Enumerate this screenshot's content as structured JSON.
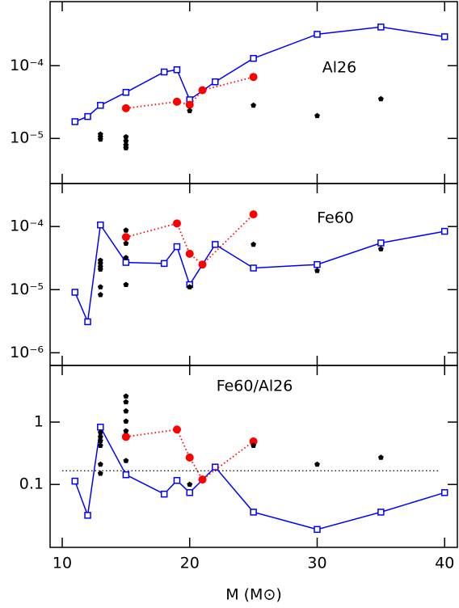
{
  "chart_data": [
    {
      "type": "line",
      "label": "Al26",
      "ylog": true,
      "xlim": [
        9.05,
        41.0
      ],
      "xticks": [
        10,
        20,
        30,
        40
      ],
      "ylim": [
        2.4e-06,
        0.00076
      ],
      "yticks": [
        {
          "value": 0.0001,
          "label": "10⁻⁴"
        },
        {
          "value": 1e-05,
          "label": "10⁻⁵"
        }
      ],
      "series": [
        {
          "color": "#0000ff",
          "style": "solid",
          "marker": "square",
          "x": [
            11,
            12,
            13,
            15,
            18,
            19,
            20,
            22,
            25,
            30,
            35,
            40
          ],
          "values": [
            1.7e-05,
            2e-05,
            2.85e-05,
            4.3e-05,
            8.2e-05,
            8.8e-05,
            3.4e-05,
            6e-05,
            0.000126,
            0.00027,
            0.00034,
            0.00025
          ]
        },
        {
          "color": "#ff0000",
          "style": "dotted",
          "marker": "circle",
          "x": [
            15,
            19,
            20,
            21,
            25
          ],
          "values": [
            2.6e-05,
            3.2e-05,
            2.9e-05,
            4.6e-05,
            7e-05
          ]
        },
        {
          "color": "#000000",
          "style": "none",
          "marker": "pentagon",
          "x": [
            13,
            13,
            13,
            15,
            15,
            15,
            15,
            20,
            25,
            30,
            35
          ],
          "values": [
            1.14e-05,
            1.05e-05,
            9.7e-06,
            1.05e-05,
            9.2e-06,
            8.1e-06,
            7.4e-06,
            2.4e-05,
            2.85e-05,
            2.05e-05,
            3.5e-05
          ]
        }
      ]
    },
    {
      "type": "line",
      "label": "Fe60",
      "ylog": true,
      "xlim": [
        9.05,
        41.0
      ],
      "xticks": [
        10,
        20,
        30,
        40
      ],
      "ylim": [
        6.3e-07,
        0.00048
      ],
      "yticks": [
        {
          "value": 0.0001,
          "label": "10⁻⁴"
        },
        {
          "value": 1e-05,
          "label": "10⁻⁵"
        },
        {
          "value": 1e-06,
          "label": "10⁻⁶"
        }
      ],
      "series": [
        {
          "color": "#0000ff",
          "style": "solid",
          "marker": "square",
          "x": [
            11,
            12,
            13,
            15,
            18,
            19,
            20,
            22,
            25,
            30,
            35,
            40
          ],
          "values": [
            9.1e-06,
            3.1e-06,
            0.000106,
            2.7e-05,
            2.6e-05,
            4.8e-05,
            1.2e-05,
            5.2e-05,
            2.2e-05,
            2.5e-05,
            5.5e-05,
            8.4e-05
          ]
        },
        {
          "color": "#ff0000",
          "style": "dotted",
          "marker": "circle",
          "x": [
            15,
            19,
            20,
            21,
            25
          ],
          "values": [
            6.8e-05,
            0.000112,
            3.7e-05,
            2.5e-05,
            0.000156
          ]
        },
        {
          "color": "#000000",
          "style": "none",
          "marker": "pentagon",
          "x": [
            13,
            13,
            13,
            13,
            13,
            13,
            15,
            15,
            15,
            15,
            20,
            25,
            30,
            35
          ],
          "values": [
            2.9e-05,
            2.6e-05,
            2.3e-05,
            2.1e-05,
            1.1e-05,
            8.3e-06,
            8.7e-05,
            5.4e-05,
            3.2e-05,
            1.2e-05,
            1.1e-05,
            5.2e-05,
            2e-05,
            4.4e-05
          ]
        }
      ]
    },
    {
      "type": "line",
      "label": "Fe60/Al26",
      "ylog": true,
      "xlim": [
        9.05,
        41.0
      ],
      "xticks": [
        10,
        20,
        30,
        40
      ],
      "xlabel": "M (M⊙)",
      "ylim": [
        0.0098,
        8.1
      ],
      "yticks": [
        1,
        0.1
      ],
      "hline": 0.166,
      "series": [
        {
          "color": "#0000ff",
          "style": "solid",
          "marker": "square",
          "x": [
            11,
            12,
            13,
            15,
            18,
            19,
            20,
            22,
            25,
            30,
            35,
            40
          ],
          "values": [
            0.113,
            0.032,
            0.83,
            0.143,
            0.07,
            0.116,
            0.074,
            0.19,
            0.036,
            0.019,
            0.036,
            0.074
          ]
        },
        {
          "color": "#ff0000",
          "style": "dotted",
          "marker": "circle",
          "x": [
            15,
            19,
            20,
            21,
            25
          ],
          "values": [
            0.58,
            0.76,
            0.27,
            0.12,
            0.49
          ]
        },
        {
          "color": "#000000",
          "style": "none",
          "marker": "pentagon",
          "x": [
            13,
            13,
            13,
            13,
            13,
            13,
            15,
            15,
            15,
            15,
            15,
            15,
            20,
            25,
            30,
            35
          ],
          "values": [
            0.68,
            0.58,
            0.5,
            0.42,
            0.21,
            0.15,
            2.6,
            2.1,
            1.5,
            1.03,
            0.72,
            0.24,
            0.1,
            0.42,
            0.21,
            0.27
          ]
        }
      ]
    }
  ]
}
